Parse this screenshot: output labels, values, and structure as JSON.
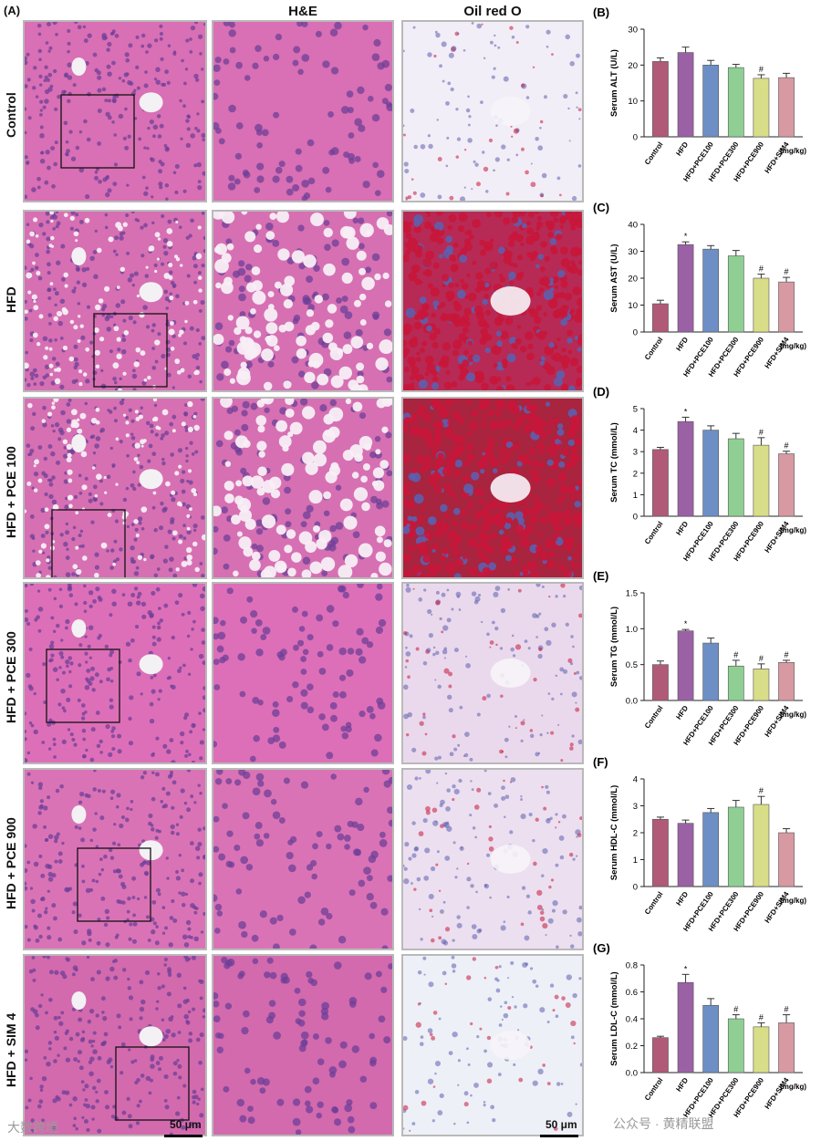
{
  "figure_label": "(A)",
  "columns": {
    "he": "H&E",
    "oil": "Oil red O"
  },
  "rows": [
    {
      "label": "Control",
      "he_bg": "#d96fb4",
      "oil_bg": "#f2eef7",
      "droplet": "none"
    },
    {
      "label": "HFD",
      "he_bg": "#d670b3",
      "oil_bg": "#b72a55",
      "droplet": "heavy"
    },
    {
      "label": "HFD + PCE 100",
      "he_bg": "#d670b3",
      "oil_bg": "#a8243f",
      "droplet": "heavy"
    },
    {
      "label": "HFD + PCE 300",
      "he_bg": "#dd6fb8",
      "oil_bg": "#ead9ec",
      "droplet": "light"
    },
    {
      "label": "HFD + PCE 900",
      "he_bg": "#da73b6",
      "oil_bg": "#ecdff0",
      "droplet": "light"
    },
    {
      "label": "HFD + SIM 4",
      "he_bg": "#d36aae",
      "oil_bg": "#eef0f8",
      "droplet": "none"
    }
  ],
  "scale_bar": "50 μm",
  "colors": {
    "series": [
      "#b05a77",
      "#9b61a5",
      "#6d8fc5",
      "#8fcf93",
      "#d8dd87",
      "#d79aa2"
    ],
    "he_nucleus": "#6d3f97",
    "oil_droplet": "#c8163a",
    "stain_blue": "#5d5fae"
  },
  "chart_data": [
    {
      "panel": "(B)",
      "type": "bar",
      "categories": [
        "Control",
        "HFD",
        "HFD+PCE100",
        "HFD+PCE300",
        "HFD+PCE900",
        "HFD+SIM4"
      ],
      "values": [
        21,
        23.5,
        20,
        19.3,
        16.3,
        16.5
      ],
      "errors": [
        1,
        1.5,
        1.3,
        0.9,
        1,
        1.2
      ],
      "marks": [
        "",
        "",
        "",
        "",
        "#",
        ""
      ],
      "ylabel": "Serum ALT (U/L)",
      "unit": "(mg/kg)",
      "ylim": [
        0,
        30
      ],
      "yticks": [
        0,
        10,
        20,
        30
      ]
    },
    {
      "panel": "(C)",
      "type": "bar",
      "categories": [
        "Control",
        "HFD",
        "HFD+PCE100",
        "HFD+PCE300",
        "HFD+PCE900",
        "HFD+SIM4"
      ],
      "values": [
        10.5,
        32.5,
        30.8,
        28.3,
        20,
        18.6
      ],
      "errors": [
        1.3,
        1,
        1.3,
        2,
        1.5,
        1.7
      ],
      "marks": [
        "",
        "*",
        "",
        "",
        "#",
        "#"
      ],
      "ylabel": "Serum AST (U/L)",
      "unit": "(mg/kg)",
      "ylim": [
        0,
        40
      ],
      "yticks": [
        0,
        10,
        20,
        30,
        40
      ]
    },
    {
      "panel": "(D)",
      "type": "bar",
      "categories": [
        "Control",
        "HFD",
        "HFD+PCE100",
        "HFD+PCE300",
        "HFD+PCE900",
        "HFD+SIM4"
      ],
      "values": [
        3.1,
        4.4,
        4,
        3.6,
        3.3,
        2.9
      ],
      "errors": [
        0.1,
        0.2,
        0.2,
        0.25,
        0.35,
        0.12
      ],
      "marks": [
        "",
        "*",
        "",
        "",
        "#",
        "#"
      ],
      "ylabel": "Serum TC (mmol/L)",
      "unit": "(mg/kg)",
      "ylim": [
        0,
        5
      ],
      "yticks": [
        0,
        1,
        2,
        3,
        4,
        5
      ]
    },
    {
      "panel": "(E)",
      "type": "bar",
      "categories": [
        "Control",
        "HFD",
        "HFD+PCE100",
        "HFD+PCE300",
        "HFD+PCE900",
        "HFD+SIM4"
      ],
      "values": [
        0.5,
        0.97,
        0.8,
        0.48,
        0.44,
        0.53
      ],
      "errors": [
        0.05,
        0.02,
        0.07,
        0.08,
        0.07,
        0.03
      ],
      "marks": [
        "",
        "*",
        "",
        "#",
        "#",
        "#"
      ],
      "ylabel": "Serum TG (mmol/L)",
      "unit": "(mg/kg)",
      "ylim": [
        0,
        1.5
      ],
      "yticks": [
        0.0,
        0.5,
        1.0,
        1.5
      ]
    },
    {
      "panel": "(F)",
      "type": "bar",
      "categories": [
        "Control",
        "HFD",
        "HFD+PCE100",
        "HFD+PCE300",
        "HFD+PCE900",
        "HFD+SIM4"
      ],
      "values": [
        2.5,
        2.35,
        2.75,
        2.95,
        3.05,
        2
      ],
      "errors": [
        0.08,
        0.12,
        0.15,
        0.25,
        0.3,
        0.15
      ],
      "marks": [
        "",
        "",
        "",
        "",
        "#",
        ""
      ],
      "ylabel": "Serum HDL-C (mmol/L)",
      "unit": "(mg/kg)",
      "ylim": [
        0,
        4
      ],
      "yticks": [
        0,
        1,
        2,
        3,
        4
      ]
    },
    {
      "panel": "(G)",
      "type": "bar",
      "categories": [
        "Control",
        "HFD",
        "HFD+PCE100",
        "HFD+PCE300",
        "HFD+PCE900",
        "HFD+SIM4"
      ],
      "values": [
        0.26,
        0.67,
        0.5,
        0.4,
        0.34,
        0.37
      ],
      "errors": [
        0.01,
        0.06,
        0.05,
        0.03,
        0.03,
        0.06
      ],
      "marks": [
        "",
        "*",
        "",
        "#",
        "#",
        "#"
      ],
      "ylabel": "Serum LDL-C (mmol/L)",
      "unit": "(mg/kg)",
      "ylim": [
        0,
        0.8
      ],
      "yticks": [
        0.0,
        0.2,
        0.4,
        0.6,
        0.8
      ]
    }
  ],
  "watermarks": {
    "left": "大数跨境",
    "right": "公众号 · 黄精联盟"
  }
}
